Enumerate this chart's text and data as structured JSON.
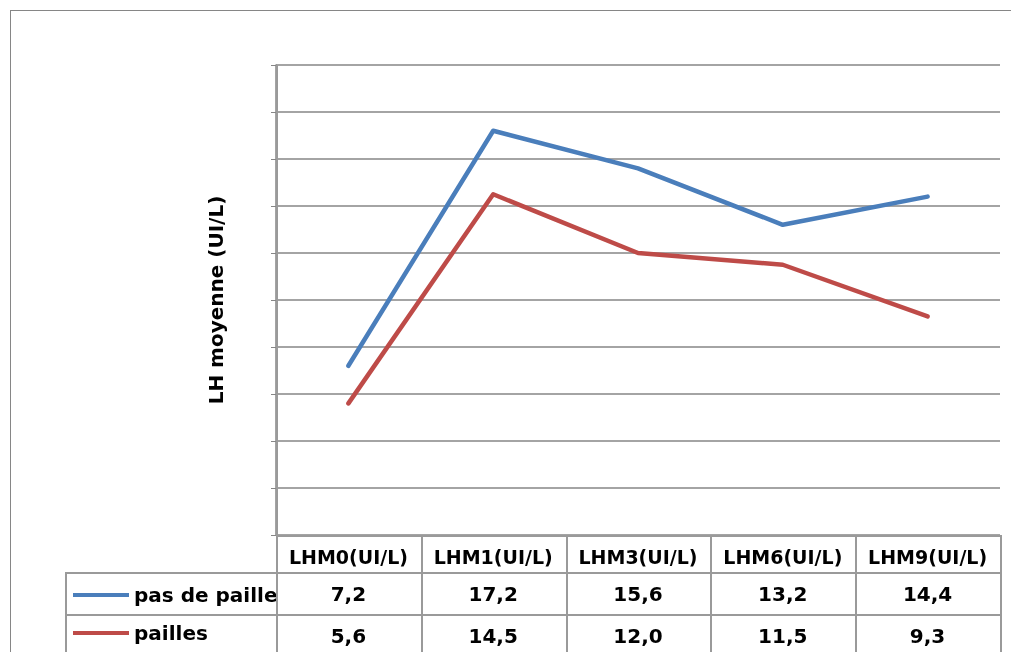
{
  "chart_data": {
    "type": "line",
    "ylabel": "LH moyenne (UI/L)",
    "categories": [
      "LHM0(UI/L)",
      "LHM1(UI/L)",
      "LHM3(UI/L)",
      "LHM6(UI/L)",
      "LHM9(UI/L)"
    ],
    "series": [
      {
        "name": "pas de paille",
        "color": "#4a7ebb",
        "values": [
          7.2,
          17.2,
          15.6,
          13.2,
          14.4
        ],
        "value_labels": [
          "7,2",
          "17,2",
          "15,6",
          "13,2",
          "14,4"
        ]
      },
      {
        "name": "pailles",
        "color": "#be4b48",
        "values": [
          5.6,
          14.5,
          12.0,
          11.5,
          9.3
        ],
        "value_labels": [
          "5,6",
          "14,5",
          "12,0",
          "11,5",
          "9,3"
        ]
      }
    ],
    "ylim": [
      0,
      20
    ],
    "yticks": [
      {
        "value": 0,
        "label": null
      },
      {
        "value": 2,
        "label": null
      },
      {
        "value": 4,
        "label": null
      },
      {
        "value": 6,
        "label": null
      },
      {
        "value": 8,
        "label": null
      },
      {
        "value": 10,
        "label": null
      },
      {
        "value": 12,
        "label": null
      },
      {
        "value": 14,
        "label": null
      },
      {
        "value": 16,
        "label": null
      },
      {
        "value": 18,
        "label": null
      },
      {
        "value": 20,
        "label": null
      }
    ],
    "tick_labels": "x",
    "grid": "y",
    "legend": "bottom left",
    "marker": "none",
    "line_style": "solid"
  }
}
